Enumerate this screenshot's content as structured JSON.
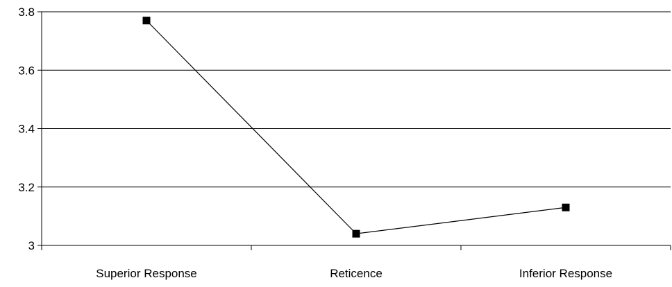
{
  "chart_data": {
    "type": "line",
    "categories": [
      "Superior Response",
      "Reticence",
      "Inferior Response"
    ],
    "values": [
      3.77,
      3.04,
      3.13
    ],
    "ylim": [
      3.0,
      3.8
    ],
    "yticks": [
      3.8,
      3.6,
      3.4,
      3.2,
      3.0
    ],
    "ytick_labels": [
      "3.8",
      "3.6",
      "3.4",
      "3.2",
      "3"
    ],
    "grid": true,
    "legend": "none",
    "colors": {
      "line": "#000000",
      "marker": "#000000",
      "grid": "#000000"
    }
  }
}
